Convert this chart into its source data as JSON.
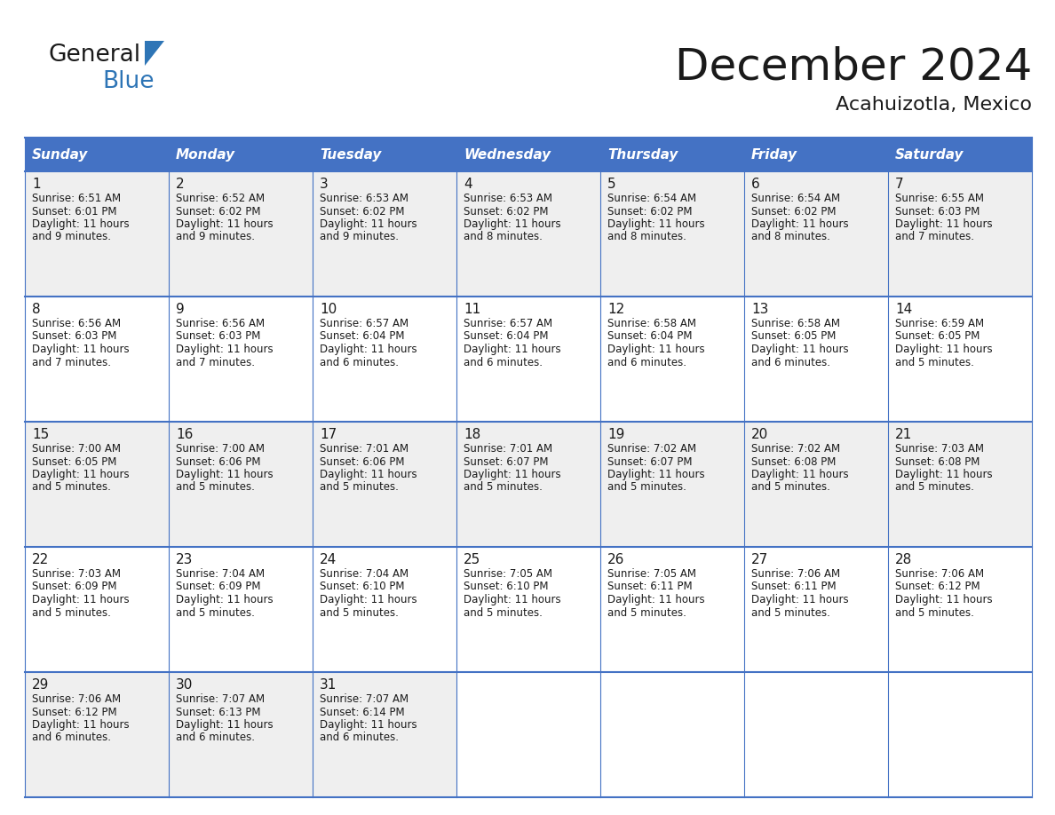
{
  "title": "December 2024",
  "subtitle": "Acahuizotla, Mexico",
  "header_color": "#4472C4",
  "header_text_color": "#FFFFFF",
  "cell_bg_even": "#EFEFEF",
  "cell_bg_odd": "#FFFFFF",
  "grid_line_color": "#4472C4",
  "text_color": "#1a1a1a",
  "day_headers": [
    "Sunday",
    "Monday",
    "Tuesday",
    "Wednesday",
    "Thursday",
    "Friday",
    "Saturday"
  ],
  "days": [
    {
      "day": 1,
      "col": 0,
      "row": 0,
      "sunrise": "6:51 AM",
      "sunset": "6:01 PM",
      "daylight_hours": 11,
      "daylight_minutes": 9
    },
    {
      "day": 2,
      "col": 1,
      "row": 0,
      "sunrise": "6:52 AM",
      "sunset": "6:02 PM",
      "daylight_hours": 11,
      "daylight_minutes": 9
    },
    {
      "day": 3,
      "col": 2,
      "row": 0,
      "sunrise": "6:53 AM",
      "sunset": "6:02 PM",
      "daylight_hours": 11,
      "daylight_minutes": 9
    },
    {
      "day": 4,
      "col": 3,
      "row": 0,
      "sunrise": "6:53 AM",
      "sunset": "6:02 PM",
      "daylight_hours": 11,
      "daylight_minutes": 8
    },
    {
      "day": 5,
      "col": 4,
      "row": 0,
      "sunrise": "6:54 AM",
      "sunset": "6:02 PM",
      "daylight_hours": 11,
      "daylight_minutes": 8
    },
    {
      "day": 6,
      "col": 5,
      "row": 0,
      "sunrise": "6:54 AM",
      "sunset": "6:02 PM",
      "daylight_hours": 11,
      "daylight_minutes": 8
    },
    {
      "day": 7,
      "col": 6,
      "row": 0,
      "sunrise": "6:55 AM",
      "sunset": "6:03 PM",
      "daylight_hours": 11,
      "daylight_minutes": 7
    },
    {
      "day": 8,
      "col": 0,
      "row": 1,
      "sunrise": "6:56 AM",
      "sunset": "6:03 PM",
      "daylight_hours": 11,
      "daylight_minutes": 7
    },
    {
      "day": 9,
      "col": 1,
      "row": 1,
      "sunrise": "6:56 AM",
      "sunset": "6:03 PM",
      "daylight_hours": 11,
      "daylight_minutes": 7
    },
    {
      "day": 10,
      "col": 2,
      "row": 1,
      "sunrise": "6:57 AM",
      "sunset": "6:04 PM",
      "daylight_hours": 11,
      "daylight_minutes": 6
    },
    {
      "day": 11,
      "col": 3,
      "row": 1,
      "sunrise": "6:57 AM",
      "sunset": "6:04 PM",
      "daylight_hours": 11,
      "daylight_minutes": 6
    },
    {
      "day": 12,
      "col": 4,
      "row": 1,
      "sunrise": "6:58 AM",
      "sunset": "6:04 PM",
      "daylight_hours": 11,
      "daylight_minutes": 6
    },
    {
      "day": 13,
      "col": 5,
      "row": 1,
      "sunrise": "6:58 AM",
      "sunset": "6:05 PM",
      "daylight_hours": 11,
      "daylight_minutes": 6
    },
    {
      "day": 14,
      "col": 6,
      "row": 1,
      "sunrise": "6:59 AM",
      "sunset": "6:05 PM",
      "daylight_hours": 11,
      "daylight_minutes": 5
    },
    {
      "day": 15,
      "col": 0,
      "row": 2,
      "sunrise": "7:00 AM",
      "sunset": "6:05 PM",
      "daylight_hours": 11,
      "daylight_minutes": 5
    },
    {
      "day": 16,
      "col": 1,
      "row": 2,
      "sunrise": "7:00 AM",
      "sunset": "6:06 PM",
      "daylight_hours": 11,
      "daylight_minutes": 5
    },
    {
      "day": 17,
      "col": 2,
      "row": 2,
      "sunrise": "7:01 AM",
      "sunset": "6:06 PM",
      "daylight_hours": 11,
      "daylight_minutes": 5
    },
    {
      "day": 18,
      "col": 3,
      "row": 2,
      "sunrise": "7:01 AM",
      "sunset": "6:07 PM",
      "daylight_hours": 11,
      "daylight_minutes": 5
    },
    {
      "day": 19,
      "col": 4,
      "row": 2,
      "sunrise": "7:02 AM",
      "sunset": "6:07 PM",
      "daylight_hours": 11,
      "daylight_minutes": 5
    },
    {
      "day": 20,
      "col": 5,
      "row": 2,
      "sunrise": "7:02 AM",
      "sunset": "6:08 PM",
      "daylight_hours": 11,
      "daylight_minutes": 5
    },
    {
      "day": 21,
      "col": 6,
      "row": 2,
      "sunrise": "7:03 AM",
      "sunset": "6:08 PM",
      "daylight_hours": 11,
      "daylight_minutes": 5
    },
    {
      "day": 22,
      "col": 0,
      "row": 3,
      "sunrise": "7:03 AM",
      "sunset": "6:09 PM",
      "daylight_hours": 11,
      "daylight_minutes": 5
    },
    {
      "day": 23,
      "col": 1,
      "row": 3,
      "sunrise": "7:04 AM",
      "sunset": "6:09 PM",
      "daylight_hours": 11,
      "daylight_minutes": 5
    },
    {
      "day": 24,
      "col": 2,
      "row": 3,
      "sunrise": "7:04 AM",
      "sunset": "6:10 PM",
      "daylight_hours": 11,
      "daylight_minutes": 5
    },
    {
      "day": 25,
      "col": 3,
      "row": 3,
      "sunrise": "7:05 AM",
      "sunset": "6:10 PM",
      "daylight_hours": 11,
      "daylight_minutes": 5
    },
    {
      "day": 26,
      "col": 4,
      "row": 3,
      "sunrise": "7:05 AM",
      "sunset": "6:11 PM",
      "daylight_hours": 11,
      "daylight_minutes": 5
    },
    {
      "day": 27,
      "col": 5,
      "row": 3,
      "sunrise": "7:06 AM",
      "sunset": "6:11 PM",
      "daylight_hours": 11,
      "daylight_minutes": 5
    },
    {
      "day": 28,
      "col": 6,
      "row": 3,
      "sunrise": "7:06 AM",
      "sunset": "6:12 PM",
      "daylight_hours": 11,
      "daylight_minutes": 5
    },
    {
      "day": 29,
      "col": 0,
      "row": 4,
      "sunrise": "7:06 AM",
      "sunset": "6:12 PM",
      "daylight_hours": 11,
      "daylight_minutes": 6
    },
    {
      "day": 30,
      "col": 1,
      "row": 4,
      "sunrise": "7:07 AM",
      "sunset": "6:13 PM",
      "daylight_hours": 11,
      "daylight_minutes": 6
    },
    {
      "day": 31,
      "col": 2,
      "row": 4,
      "sunrise": "7:07 AM",
      "sunset": "6:14 PM",
      "daylight_hours": 11,
      "daylight_minutes": 6
    }
  ]
}
